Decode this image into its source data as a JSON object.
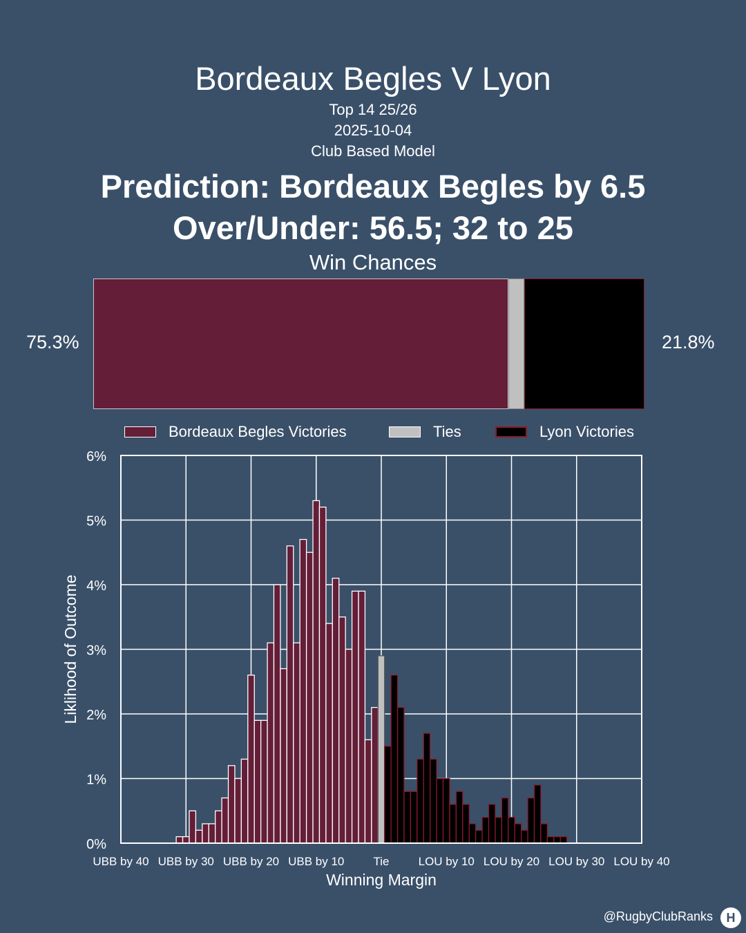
{
  "header": {
    "title": "Bordeaux Begles V Lyon",
    "competition": "Top 14 25/26",
    "date": "2025-10-04",
    "model": "Club Based Model",
    "prediction": "Prediction: Bordeaux Begles by 6.5",
    "over_under": "Over/Under: 56.5; 32 to 25",
    "win_chances_label": "Win Chances"
  },
  "win_bar": {
    "home_pct_label": "75.3%",
    "away_pct_label": "21.8%",
    "home_share": 0.753,
    "tie_share": 0.029,
    "away_share": 0.218
  },
  "legend": {
    "home": "Bordeaux Begles Victories",
    "tie": "Ties",
    "away": "Lyon Victories"
  },
  "colors": {
    "background": "#3a5069",
    "home": "#641e37",
    "tie": "#c0c0c0",
    "away": "#000000",
    "away_edge": "#8b1a2e"
  },
  "chart_data": {
    "type": "bar",
    "xlabel": "Winning Margin",
    "ylabel": "Liklihood of Outcome",
    "ylim": [
      0,
      6
    ],
    "xlim": [
      -40,
      40
    ],
    "grid": true,
    "y_ticks": [
      "0%",
      "1%",
      "2%",
      "3%",
      "4%",
      "5%",
      "6%"
    ],
    "x_ticks": [
      "UBB by 40",
      "UBB by 30",
      "UBB by 20",
      "UBB by 10",
      "Tie",
      "LOU by 10",
      "LOU by 20",
      "LOU by 30",
      "LOU by 40"
    ],
    "x_tick_values": [
      -40,
      -30,
      -20,
      -10,
      0,
      10,
      20,
      30,
      40
    ],
    "series": [
      {
        "name": "Bordeaux Begles Victories",
        "x": [
          -31,
          -30,
          -29,
          -28,
          -27,
          -26,
          -25,
          -24,
          -23,
          -22,
          -21,
          -20,
          -19,
          -18,
          -17,
          -16,
          -15,
          -14,
          -13,
          -12,
          -11,
          -10,
          -9,
          -8,
          -7,
          -6,
          -5,
          -4,
          -3,
          -2,
          -1
        ],
        "values": [
          0.1,
          0.1,
          0.5,
          0.2,
          0.3,
          0.3,
          0.5,
          0.7,
          1.2,
          1.0,
          1.3,
          2.6,
          1.9,
          1.9,
          3.1,
          4.0,
          2.7,
          4.6,
          3.1,
          4.7,
          4.5,
          5.3,
          5.2,
          3.4,
          4.1,
          3.5,
          3.0,
          3.9,
          3.9,
          1.6,
          2.1
        ]
      },
      {
        "name": "Ties",
        "x": [
          0
        ],
        "values": [
          2.9
        ]
      },
      {
        "name": "Lyon Victories",
        "x": [
          1,
          2,
          3,
          4,
          5,
          6,
          7,
          8,
          9,
          10,
          11,
          12,
          13,
          14,
          15,
          16,
          17,
          18,
          19,
          20,
          21,
          22,
          23,
          24,
          25,
          26,
          27,
          28
        ],
        "values": [
          1.5,
          2.6,
          2.1,
          0.8,
          0.8,
          1.3,
          1.7,
          1.3,
          1.0,
          1.0,
          0.6,
          0.8,
          0.6,
          0.3,
          0.2,
          0.4,
          0.6,
          0.4,
          0.7,
          0.4,
          0.3,
          0.2,
          0.7,
          0.9,
          0.3,
          0.1,
          0.1,
          0.1
        ]
      }
    ]
  },
  "footer": {
    "credit": "@RugbyClubRanks"
  }
}
